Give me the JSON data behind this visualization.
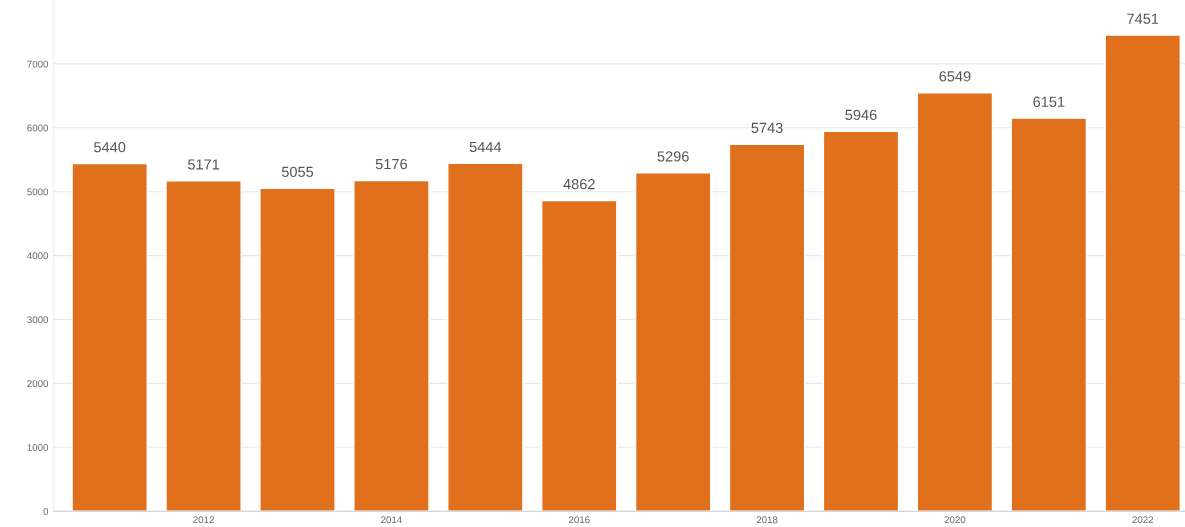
{
  "chart_data": {
    "type": "bar",
    "categories": [
      null,
      "2012",
      null,
      "2014",
      null,
      "2016",
      null,
      "2018",
      null,
      "2020",
      null,
      "2022"
    ],
    "values": [
      5440,
      5171,
      5055,
      5176,
      5444,
      4862,
      5296,
      5743,
      5946,
      6549,
      6151,
      7451
    ],
    "color": "#e1701d",
    "ylim": [
      0,
      8000
    ],
    "yticks": [
      0,
      1000,
      2000,
      3000,
      4000,
      5000,
      6000,
      7000
    ],
    "grid": "y",
    "data_labels": true,
    "legend": false
  }
}
